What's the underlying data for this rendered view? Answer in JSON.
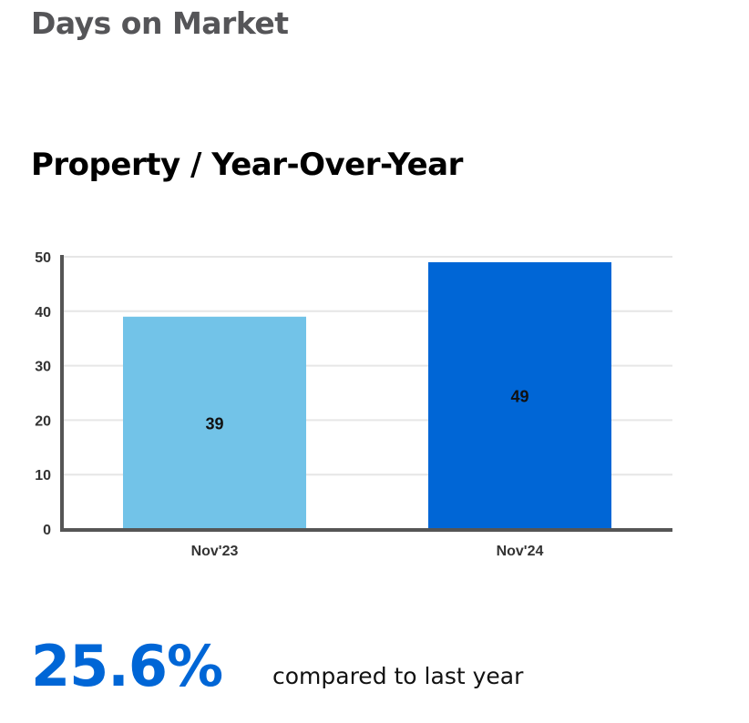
{
  "header": {
    "title": "Days on Market"
  },
  "summary": {
    "change_value": "25.6%",
    "change_caption": "compared to last year"
  },
  "colors": {
    "title": "#555558",
    "subtitle": "#000000",
    "accent": "#0066D6",
    "bar_prior": "#72C3E8",
    "bar_current": "#0066D6",
    "axis": "#555555",
    "grid": "#E6E6E6",
    "tick_text": "#333333"
  },
  "chart_data": {
    "type": "bar",
    "title": "Property / Year-Over-Year",
    "xlabel": "",
    "ylabel": "",
    "categories": [
      "Nov'23",
      "Nov'24"
    ],
    "values": [
      39,
      49
    ],
    "data_labels": [
      "39",
      "49"
    ],
    "ylim": [
      0,
      50
    ],
    "yticks": [
      0,
      10,
      20,
      30,
      40,
      50
    ],
    "grid": true,
    "legend": "none"
  }
}
